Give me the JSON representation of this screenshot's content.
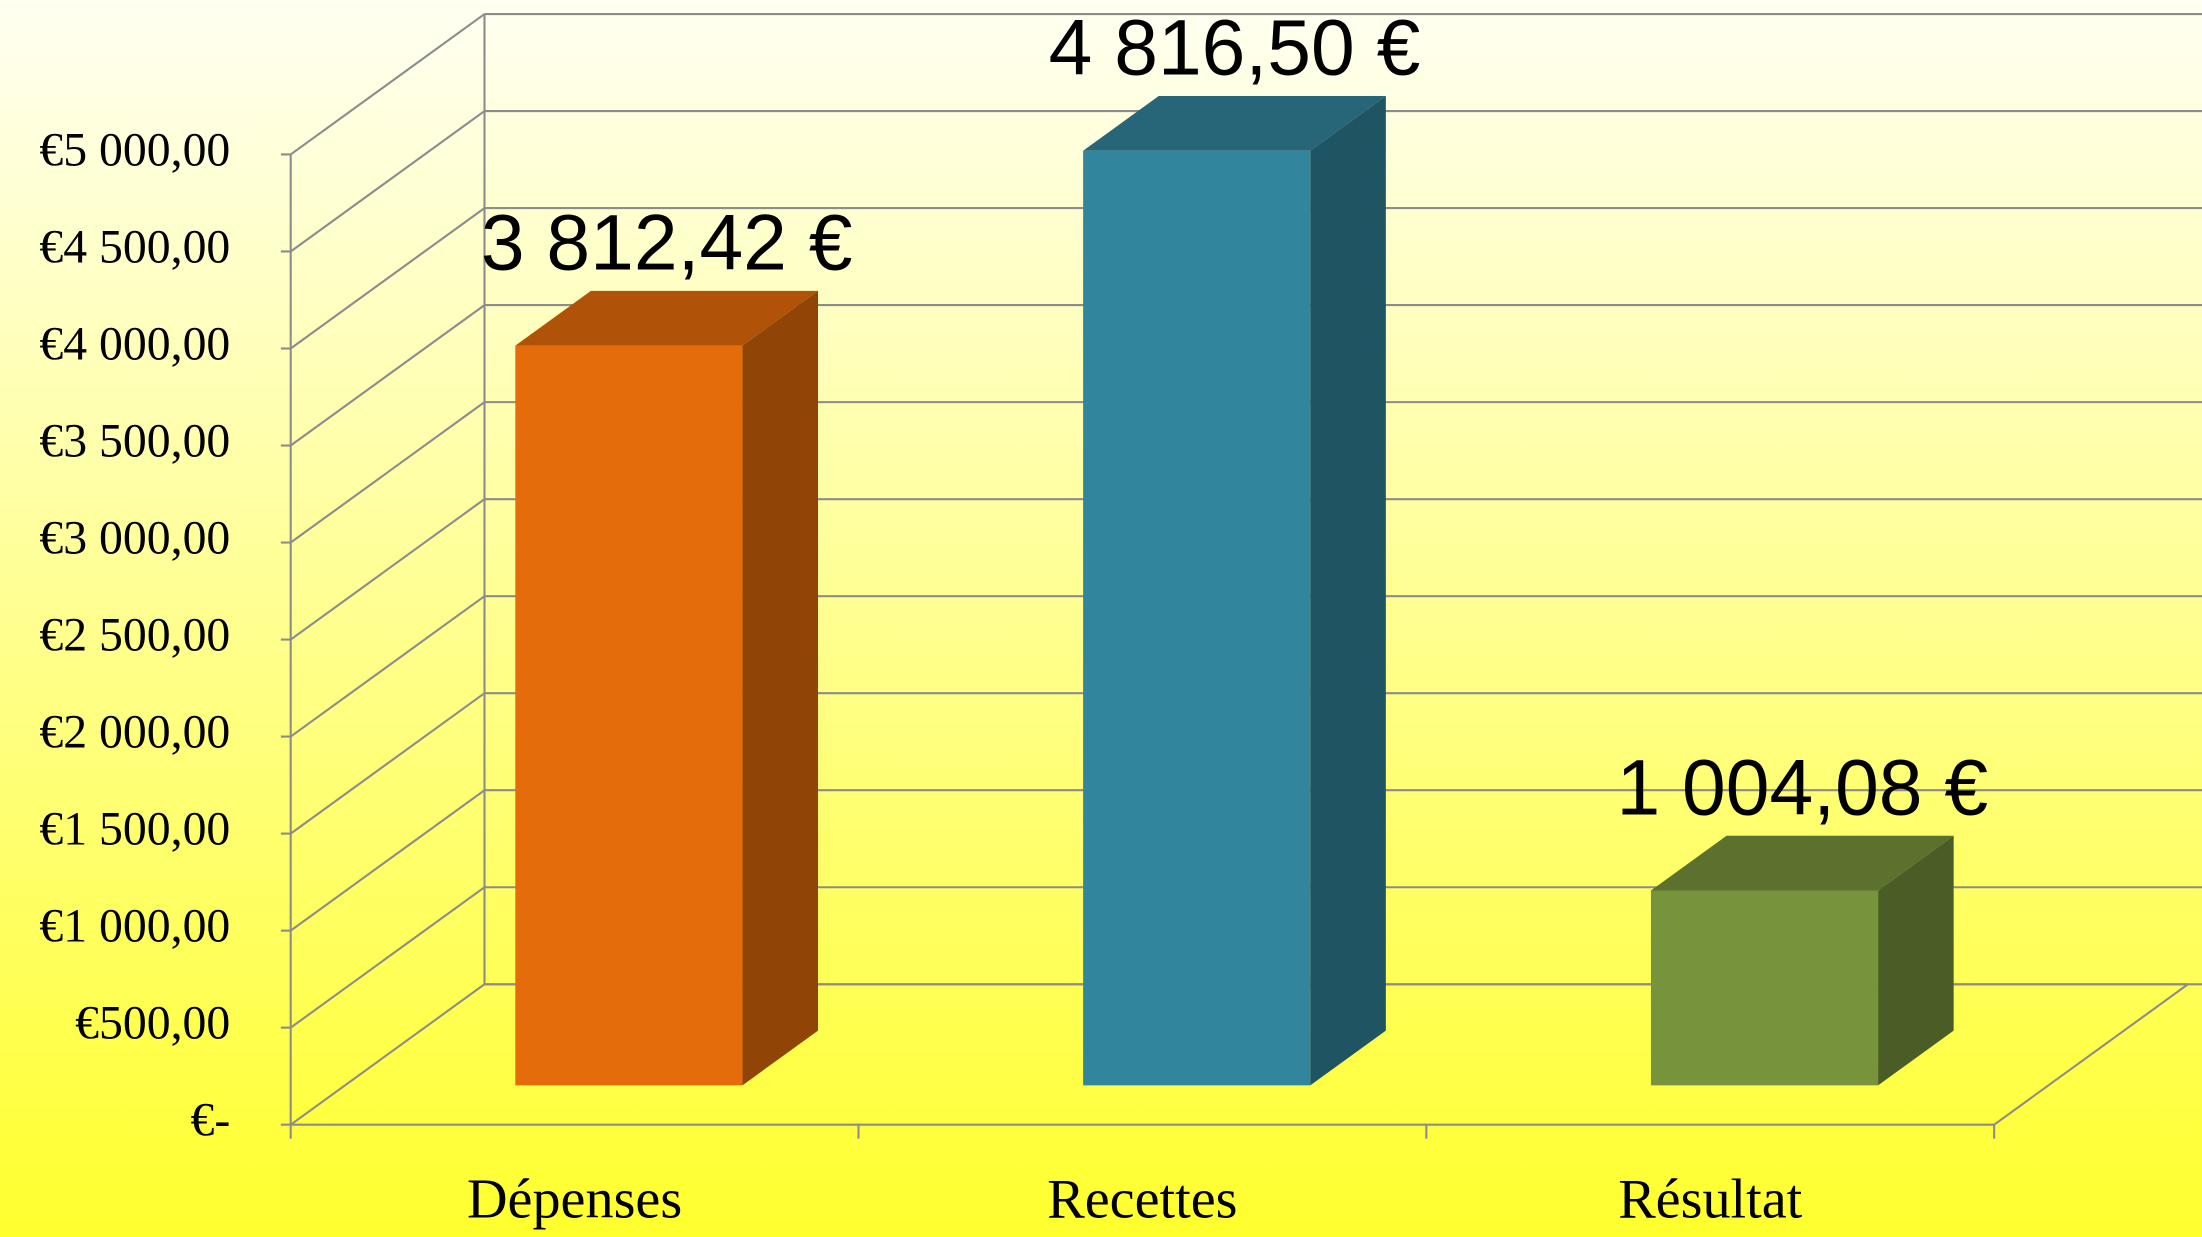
{
  "chart_data": {
    "type": "bar3d",
    "categories": [
      "Dépenses",
      "Recettes",
      "Résultat"
    ],
    "values": [
      3812.42,
      4816.5,
      1004.08
    ],
    "value_labels": [
      "3 812,42 €",
      "4 816,50 €",
      "1 004,08 €"
    ],
    "colors": [
      "#e46c0a",
      "#31859c",
      "#77933c"
    ],
    "ylim": [
      0,
      5000
    ],
    "yticks": [
      {
        "value": 0,
        "label": "€-"
      },
      {
        "value": 500,
        "label": "€500,00"
      },
      {
        "value": 1000,
        "label": "€1 000,00"
      },
      {
        "value": 1500,
        "label": "€1 500,00"
      },
      {
        "value": 2000,
        "label": "€2 000,00"
      },
      {
        "value": 2500,
        "label": "€2 500,00"
      },
      {
        "value": 3000,
        "label": "€3 000,00"
      },
      {
        "value": 3500,
        "label": "€3 500,00"
      },
      {
        "value": 4000,
        "label": "€4 000,00"
      },
      {
        "value": 4500,
        "label": "€4 500,00"
      },
      {
        "value": 5000,
        "label": "€5 000,00"
      }
    ],
    "grid": true
  }
}
